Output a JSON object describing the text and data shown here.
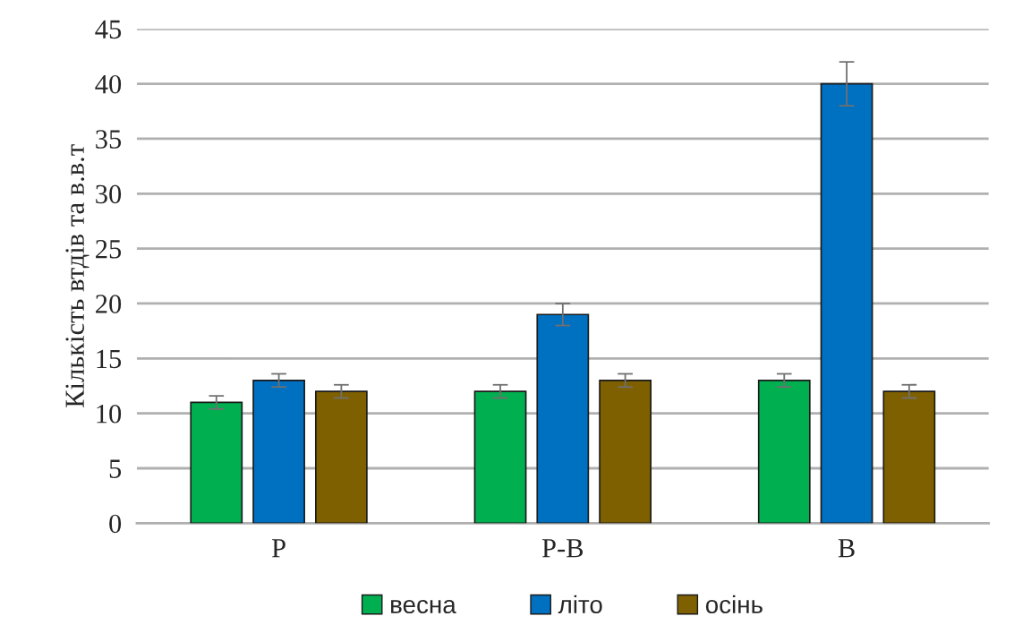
{
  "chart_data": {
    "type": "bar",
    "ylabel": "Кількість втдів та в.в.т",
    "categories": [
      "Р",
      "Р-В",
      "В"
    ],
    "series": [
      {
        "name": "весна",
        "color": "#00b050",
        "values": [
          11,
          12,
          13
        ],
        "errors": [
          0.6,
          0.6,
          0.6
        ]
      },
      {
        "name": "літо",
        "color": "#0070c0",
        "values": [
          13,
          19,
          40
        ],
        "errors": [
          0.6,
          1,
          2
        ]
      },
      {
        "name": "осінь",
        "color": "#7f6000",
        "values": [
          12,
          13,
          12
        ],
        "errors": [
          0.6,
          0.6,
          0.6
        ]
      }
    ],
    "ylim": [
      0,
      45
    ],
    "yticks": [
      0,
      5,
      10,
      15,
      20,
      25,
      30,
      35,
      40,
      45
    ],
    "grid": "y",
    "legend": "bottom"
  }
}
